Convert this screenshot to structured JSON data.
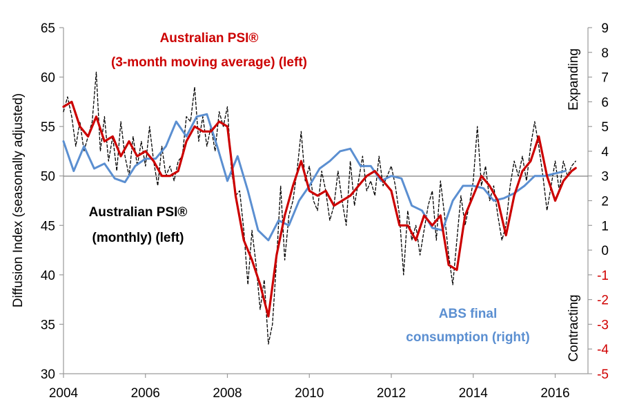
{
  "colors": {
    "monthly": "#000000",
    "moving_average": "#cc0000",
    "abs": "#5b8fd1",
    "negative_tick": "#d00000"
  },
  "chart_data": {
    "type": "line",
    "x_tick_labels": [
      "2004",
      "2006",
      "2008",
      "2010",
      "2012",
      "2014",
      "2016"
    ],
    "xlim": [
      2004,
      2016.8
    ],
    "ylim_left": [
      30,
      65
    ],
    "ylim_right": [
      -5,
      9
    ],
    "left_ticks": [
      "30",
      "35",
      "40",
      "45",
      "50",
      "55",
      "60",
      "65"
    ],
    "right_ticks": [
      "-5",
      "-4",
      "-3",
      "-2",
      "-1",
      "0",
      "1",
      "2",
      "3",
      "4",
      "5",
      "6",
      "7",
      "8",
      "9"
    ],
    "ylabel_left": "Diffusion Index (seasonally adjusted)",
    "right_label_top": "Expanding",
    "right_label_bottom": "Contracting",
    "reference_line_left": 50,
    "annotations": {
      "ma_line1": "Australian PSI®",
      "ma_line2": "(3-month moving average) (left)",
      "monthly_line1": "Australian PSI®",
      "monthly_line2": "(monthly) (left)",
      "abs_line1": "ABS final",
      "abs_line2": "consumption (right)"
    },
    "series": [
      {
        "name": "Australian PSI® (monthly) (left)",
        "axis": "left",
        "style": "dashed",
        "x": [
          2004.0,
          2004.1,
          2004.2,
          2004.3,
          2004.4,
          2004.5,
          2004.6,
          2004.7,
          2004.8,
          2004.9,
          2005.0,
          2005.1,
          2005.2,
          2005.3,
          2005.4,
          2005.5,
          2005.6,
          2005.7,
          2005.8,
          2005.9,
          2006.0,
          2006.1,
          2006.2,
          2006.3,
          2006.4,
          2006.5,
          2006.6,
          2006.7,
          2006.8,
          2006.9,
          2007.0,
          2007.1,
          2007.2,
          2007.3,
          2007.4,
          2007.5,
          2007.6,
          2007.7,
          2007.8,
          2007.9,
          2008.0,
          2008.1,
          2008.2,
          2008.3,
          2008.4,
          2008.5,
          2008.6,
          2008.7,
          2008.8,
          2008.9,
          2009.0,
          2009.1,
          2009.2,
          2009.3,
          2009.4,
          2009.5,
          2009.6,
          2009.7,
          2009.8,
          2009.9,
          2010.0,
          2010.1,
          2010.2,
          2010.3,
          2010.4,
          2010.5,
          2010.6,
          2010.7,
          2010.8,
          2010.9,
          2011.0,
          2011.1,
          2011.2,
          2011.3,
          2011.4,
          2011.5,
          2011.6,
          2011.7,
          2011.8,
          2011.9,
          2012.0,
          2012.1,
          2012.2,
          2012.3,
          2012.4,
          2012.5,
          2012.6,
          2012.7,
          2012.8,
          2012.9,
          2013.0,
          2013.1,
          2013.2,
          2013.3,
          2013.4,
          2013.5,
          2013.6,
          2013.7,
          2013.8,
          2013.9,
          2014.0,
          2014.1,
          2014.2,
          2014.3,
          2014.4,
          2014.5,
          2014.6,
          2014.7,
          2014.8,
          2014.9,
          2015.0,
          2015.1,
          2015.2,
          2015.3,
          2015.4,
          2015.5,
          2015.6,
          2015.7,
          2015.8,
          2015.9,
          2016.0,
          2016.1,
          2016.2,
          2016.3,
          2016.4,
          2016.5
        ],
        "values": [
          56.5,
          58.0,
          56.0,
          53.0,
          55.5,
          52.5,
          54.0,
          55.5,
          60.5,
          52.5,
          56.0,
          51.5,
          54.0,
          50.5,
          55.5,
          52.0,
          50.0,
          54.0,
          51.0,
          53.5,
          51.0,
          55.0,
          51.5,
          49.0,
          53.0,
          50.0,
          51.0,
          49.5,
          51.5,
          52.0,
          56.0,
          55.5,
          59.0,
          53.5,
          56.0,
          53.0,
          55.0,
          52.5,
          56.5,
          55.0,
          57.0,
          50.5,
          48.0,
          48.5,
          44.5,
          39.0,
          44.5,
          41.0,
          36.5,
          39.5,
          33.0,
          35.0,
          41.5,
          49.0,
          41.5,
          46.0,
          47.5,
          50.5,
          54.5,
          49.5,
          51.0,
          47.5,
          46.5,
          50.5,
          48.5,
          45.5,
          47.0,
          50.5,
          47.5,
          45.0,
          51.5,
          47.0,
          49.5,
          52.0,
          48.5,
          49.5,
          48.0,
          52.0,
          49.0,
          50.0,
          51.0,
          49.0,
          46.0,
          40.0,
          46.5,
          43.5,
          45.0,
          42.0,
          44.5,
          47.0,
          48.5,
          43.5,
          49.5,
          46.0,
          42.0,
          39.0,
          43.5,
          48.0,
          45.0,
          47.0,
          49.5,
          55.0,
          49.0,
          51.0,
          47.5,
          49.0,
          46.0,
          43.5,
          45.0,
          49.0,
          51.5,
          50.0,
          52.0,
          49.5,
          53.0,
          55.5,
          53.0,
          50.0,
          46.5,
          49.0,
          51.5,
          48.5,
          51.5,
          50.0,
          51.0,
          51.5
        ]
      },
      {
        "name": "Australian PSI® (3-month moving average) (left)",
        "axis": "left",
        "style": "solid",
        "x": [
          2004.0,
          2004.2,
          2004.4,
          2004.6,
          2004.8,
          2005.0,
          2005.2,
          2005.4,
          2005.6,
          2005.8,
          2006.0,
          2006.2,
          2006.4,
          2006.6,
          2006.8,
          2007.0,
          2007.2,
          2007.4,
          2007.6,
          2007.8,
          2008.0,
          2008.2,
          2008.4,
          2008.6,
          2008.8,
          2009.0,
          2009.2,
          2009.4,
          2009.6,
          2009.8,
          2010.0,
          2010.2,
          2010.4,
          2010.6,
          2010.8,
          2011.0,
          2011.2,
          2011.4,
          2011.6,
          2011.8,
          2012.0,
          2012.2,
          2012.4,
          2012.6,
          2012.8,
          2013.0,
          2013.2,
          2013.4,
          2013.6,
          2013.8,
          2014.0,
          2014.2,
          2014.4,
          2014.6,
          2014.8,
          2015.0,
          2015.2,
          2015.4,
          2015.6,
          2015.8,
          2016.0,
          2016.2,
          2016.4,
          2016.5
        ],
        "values": [
          57.0,
          57.5,
          55.0,
          54.0,
          56.0,
          53.5,
          54.0,
          52.0,
          53.5,
          52.0,
          52.5,
          51.5,
          50.0,
          50.0,
          50.5,
          53.5,
          55.0,
          54.5,
          54.5,
          55.5,
          55.0,
          48.0,
          43.5,
          41.5,
          39.0,
          35.8,
          42.0,
          46.0,
          49.0,
          51.5,
          48.5,
          48.0,
          48.5,
          47.0,
          47.5,
          48.0,
          49.0,
          50.0,
          50.5,
          49.5,
          48.5,
          45.0,
          45.0,
          43.5,
          46.0,
          45.0,
          46.0,
          41.0,
          40.5,
          46.0,
          48.0,
          50.0,
          49.0,
          47.5,
          44.0,
          48.0,
          50.5,
          51.5,
          54.0,
          50.0,
          47.5,
          49.5,
          50.5,
          50.8
        ]
      },
      {
        "name": "ABS final consumption (right)",
        "axis": "right",
        "style": "solid",
        "x": [
          2004.0,
          2004.25,
          2004.5,
          2004.75,
          2005.0,
          2005.25,
          2005.5,
          2005.75,
          2006.0,
          2006.25,
          2006.5,
          2006.75,
          2007.0,
          2007.25,
          2007.5,
          2007.75,
          2008.0,
          2008.25,
          2008.5,
          2008.75,
          2009.0,
          2009.25,
          2009.5,
          2009.75,
          2010.0,
          2010.25,
          2010.5,
          2010.75,
          2011.0,
          2011.25,
          2011.5,
          2011.75,
          2012.0,
          2012.25,
          2012.5,
          2012.75,
          2013.0,
          2013.25,
          2013.5,
          2013.75,
          2014.0,
          2014.25,
          2014.5,
          2014.75,
          2015.0,
          2015.25,
          2015.5,
          2015.75,
          2016.0,
          2016.25
        ],
        "values": [
          4.4,
          3.2,
          4.2,
          3.3,
          3.5,
          2.9,
          2.75,
          3.4,
          3.7,
          3.7,
          4.2,
          5.2,
          4.6,
          5.4,
          5.5,
          4.2,
          2.8,
          3.8,
          2.4,
          0.8,
          0.4,
          1.2,
          1.0,
          2.0,
          2.6,
          3.3,
          3.6,
          4.0,
          4.1,
          3.4,
          3.4,
          2.8,
          3.0,
          2.9,
          1.8,
          1.6,
          0.9,
          0.8,
          2.0,
          2.6,
          2.6,
          2.5,
          2.0,
          2.1,
          2.3,
          2.6,
          3.0,
          3.0,
          3.1,
          3.2
        ]
      }
    ]
  }
}
